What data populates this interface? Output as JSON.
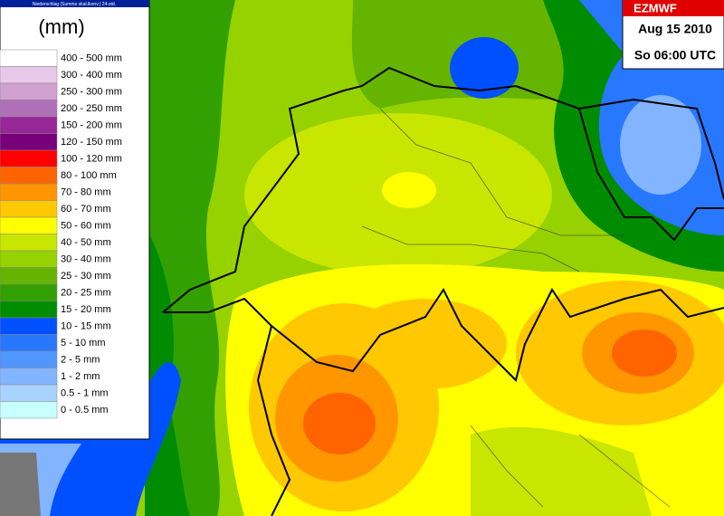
{
  "header": {
    "caption": "Niederschlag (Summe skal.lkonv.) 24-std.",
    "unit": "(mm)"
  },
  "legend": [
    {
      "label": "400 - 500 mm",
      "color": "#ffffff"
    },
    {
      "label": "300 - 400 mm",
      "color": "#e8c8e8"
    },
    {
      "label": "250 - 300 mm",
      "color": "#d0a0d0"
    },
    {
      "label": "200 - 250 mm",
      "color": "#b070b8"
    },
    {
      "label": "150 - 200 mm",
      "color": "#982898"
    },
    {
      "label": "120 - 150 mm",
      "color": "#780078"
    },
    {
      "label": "100 - 120 mm",
      "color": "#ff0000"
    },
    {
      "label": "80 - 100 mm",
      "color": "#ff6400"
    },
    {
      "label": "70 - 80 mm",
      "color": "#ff9600"
    },
    {
      "label": "60 - 70 mm",
      "color": "#ffc800"
    },
    {
      "label": "50 - 60 mm",
      "color": "#ffff00"
    },
    {
      "label": "40 - 50 mm",
      "color": "#c8e600"
    },
    {
      "label": "30 - 40 mm",
      "color": "#96d200"
    },
    {
      "label": "25 - 30 mm",
      "color": "#64b400"
    },
    {
      "label": "20 - 25 mm",
      "color": "#32a000"
    },
    {
      "label": "15 - 20 mm",
      "color": "#008c00"
    },
    {
      "label": "10 - 15 mm",
      "color": "#0050ff"
    },
    {
      "label": "5 - 10 mm",
      "color": "#2878ff"
    },
    {
      "label": "2 - 5 mm",
      "color": "#5096ff"
    },
    {
      "label": "1 - 2 mm",
      "color": "#82b4ff"
    },
    {
      "label": "0.5 - 1 mm",
      "color": "#aad2ff"
    },
    {
      "label": "0 - 0.5 mm",
      "color": "#c8ffff"
    }
  ],
  "model_box": {
    "model": "EZMWF",
    "date": "Aug 15 2010",
    "time": "So 06:00 UTC"
  }
}
